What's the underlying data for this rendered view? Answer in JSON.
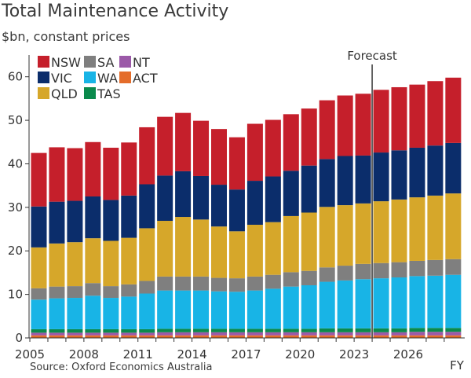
{
  "chart_data": {
    "type": "bar",
    "stacked": true,
    "title": "Total Maintenance Activity",
    "subtitle": "$bn, constant prices",
    "xlabel": "FY",
    "source": "Source: Oxford Economics Australia",
    "annotation": "Forecast",
    "forecast_from": 2024,
    "ylim": [
      0,
      65
    ],
    "yticks": [
      0,
      10,
      20,
      30,
      40,
      50,
      60
    ],
    "grid": false,
    "legend_position": "top-left",
    "categories": [
      2005,
      2006,
      2007,
      2008,
      2009,
      2010,
      2011,
      2012,
      2013,
      2014,
      2015,
      2016,
      2017,
      2018,
      2019,
      2020,
      2021,
      2022,
      2023,
      2024,
      2025,
      2026,
      2027,
      2028
    ],
    "xtick_labels": [
      "2005",
      "2008",
      "2011",
      "2014",
      "2017",
      "2020",
      "2023",
      "2026"
    ],
    "series": [
      {
        "name": "ACT",
        "color": "#e46c2a",
        "values": [
          0.6,
          0.6,
          0.6,
          0.6,
          0.6,
          0.6,
          0.6,
          0.6,
          0.6,
          0.6,
          0.6,
          0.6,
          0.6,
          0.6,
          0.6,
          0.6,
          0.6,
          0.6,
          0.6,
          0.6,
          0.6,
          0.6,
          0.6,
          0.6
        ]
      },
      {
        "name": "NT",
        "color": "#9b59a8",
        "values": [
          0.6,
          0.6,
          0.6,
          0.6,
          0.6,
          0.6,
          0.6,
          0.7,
          0.7,
          0.7,
          0.7,
          0.7,
          0.7,
          0.7,
          0.7,
          0.7,
          0.7,
          0.7,
          0.7,
          0.7,
          0.7,
          0.8,
          0.8,
          0.8
        ]
      },
      {
        "name": "TAS",
        "color": "#0a8a4c",
        "values": [
          0.8,
          0.8,
          0.8,
          0.8,
          0.8,
          0.8,
          0.8,
          0.8,
          0.8,
          0.8,
          0.8,
          0.8,
          0.8,
          0.8,
          0.8,
          0.8,
          0.9,
          0.9,
          0.9,
          0.9,
          0.9,
          0.9,
          0.9,
          0.9
        ]
      },
      {
        "name": "WA",
        "color": "#18b4e6",
        "values": [
          6.8,
          7.1,
          7.2,
          7.7,
          7.2,
          7.5,
          8.2,
          8.8,
          8.8,
          8.8,
          8.6,
          8.5,
          8.8,
          9.2,
          9.7,
          10.0,
          10.7,
          11.0,
          11.3,
          11.5,
          11.7,
          11.9,
          12.0,
          12.2
        ]
      },
      {
        "name": "SA",
        "color": "#7f7f7f",
        "values": [
          2.6,
          2.7,
          2.7,
          2.9,
          2.7,
          2.8,
          2.9,
          3.2,
          3.2,
          3.2,
          3.1,
          3.1,
          3.2,
          3.2,
          3.3,
          3.3,
          3.3,
          3.4,
          3.5,
          3.5,
          3.5,
          3.5,
          3.6,
          3.6
        ]
      },
      {
        "name": "QLD",
        "color": "#d6a72a",
        "values": [
          9.4,
          9.9,
          10.1,
          10.3,
          10.4,
          10.7,
          12.1,
          12.8,
          13.7,
          13.1,
          11.8,
          10.8,
          11.9,
          12.1,
          12.9,
          13.4,
          13.9,
          13.9,
          13.9,
          14.2,
          14.4,
          14.6,
          14.8,
          15.1
        ]
      },
      {
        "name": "VIC",
        "color": "#0b2d6b",
        "values": [
          9.4,
          9.6,
          9.5,
          9.6,
          9.4,
          9.7,
          10.1,
          10.4,
          10.5,
          10.0,
          9.6,
          9.6,
          10.1,
          10.5,
          10.4,
          10.8,
          11.0,
          11.3,
          11.0,
          11.2,
          11.3,
          11.4,
          11.5,
          11.6
        ]
      },
      {
        "name": "NSW",
        "color": "#c51f2b",
        "values": [
          12.3,
          12.5,
          12.1,
          12.5,
          12.0,
          12.2,
          13.1,
          13.5,
          13.4,
          12.7,
          12.8,
          12.0,
          13.1,
          13.0,
          13.0,
          13.1,
          13.5,
          13.9,
          14.2,
          14.4,
          14.5,
          14.5,
          14.8,
          15.0
        ]
      }
    ],
    "legend": [
      [
        "NSW",
        "SA",
        "NT"
      ],
      [
        "VIC",
        "WA",
        "ACT"
      ],
      [
        "QLD",
        "TAS"
      ]
    ]
  }
}
